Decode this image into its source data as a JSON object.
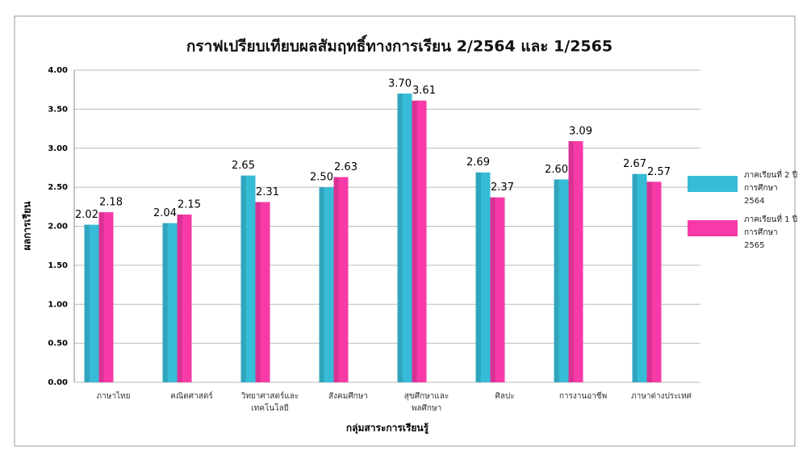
{
  "chart_data": {
    "type": "bar",
    "title": "กราฟเปรียบเทียบผลสัมฤทธิ์ทางการเรียน 2/2564 และ 1/2565",
    "x_label": "กลุ่มสาระการเรียนรู้",
    "y_label": "ผลการเรียน",
    "categories": [
      "ภาษาไทย",
      "คณิตศาสตร์",
      "วิทยาศาสตร์และเทคโนโลยี",
      "สังคมศึกษา",
      "สุขศึกษาและพลศึกษา",
      "ศิลปะ",
      "การงานอาชีพ",
      "ภาษาต่างประเทศ"
    ],
    "series": [
      {
        "name": "ภาคเรียนที่ 2 ปีการศึกษา 2564",
        "color": "#37bcd8",
        "values": [
          2.02,
          2.04,
          2.65,
          2.5,
          3.7,
          2.69,
          2.6,
          2.67
        ],
        "value_labels": [
          "2.02",
          "2.04",
          "2.65",
          "2.50",
          "3.70",
          "2.69",
          "2.60",
          "2.67"
        ]
      },
      {
        "name": "ภาคเรียนที่ 1 ปีการศึกษา 2565",
        "color": "#f83aa9",
        "values": [
          2.18,
          2.15,
          2.31,
          2.63,
          3.61,
          2.37,
          3.09,
          2.57
        ],
        "value_labels": [
          "2.18",
          "2.15",
          "2.31",
          "2.63",
          "3.61",
          "2.37",
          "3.09",
          "2.57"
        ]
      }
    ],
    "ylim": [
      0,
      4
    ],
    "yticks": [
      {
        "value": 0,
        "label": "0.00"
      },
      {
        "value": 0.5,
        "label": "0.50"
      },
      {
        "value": 1,
        "label": "1.00"
      },
      {
        "value": 1.5,
        "label": "1.50"
      },
      {
        "value": 2,
        "label": "2.00"
      },
      {
        "value": 2.5,
        "label": "2.50"
      },
      {
        "value": 3,
        "label": "3.00"
      },
      {
        "value": 3.5,
        "label": "3.50"
      },
      {
        "value": 4,
        "label": "4.00"
      }
    ],
    "grid": true,
    "legend": "right"
  }
}
